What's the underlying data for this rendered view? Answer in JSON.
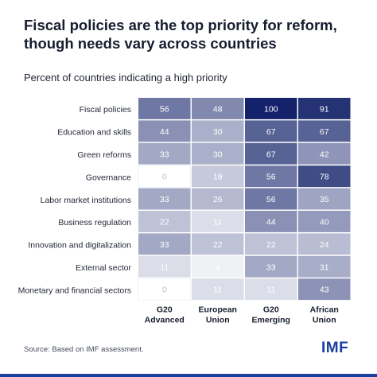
{
  "title": "Fiscal policies are the top priority for reform, though needs vary across countries",
  "subtitle": "Percent of countries indicating a high priority",
  "source": "Source: Based on IMF assessment.",
  "logo_text": "IMF",
  "colors": {
    "low": "#ffffff",
    "high": "#13226a",
    "accent": "#1b3fa0"
  },
  "chart_data": {
    "type": "heatmap",
    "rows": [
      "Fiscal policies",
      "Education and skills",
      "Green reforms",
      "Governance",
      "Labor market institutions",
      "Business regulation",
      "Innovation and digitalization",
      "External sector",
      "Monetary and financial sectors"
    ],
    "columns": [
      [
        "G20",
        "Advanced"
      ],
      [
        "European",
        "Union"
      ],
      [
        "G20",
        "Emerging"
      ],
      [
        "African",
        "Union"
      ]
    ],
    "values": [
      [
        56,
        48,
        100,
        91
      ],
      [
        44,
        30,
        67,
        67
      ],
      [
        33,
        30,
        67,
        42
      ],
      [
        0,
        19,
        56,
        78
      ],
      [
        33,
        26,
        56,
        35
      ],
      [
        22,
        11,
        44,
        40
      ],
      [
        33,
        22,
        22,
        24
      ],
      [
        11,
        4,
        33,
        31
      ],
      [
        0,
        11,
        11,
        43
      ]
    ],
    "value_range": [
      0,
      100
    ]
  }
}
